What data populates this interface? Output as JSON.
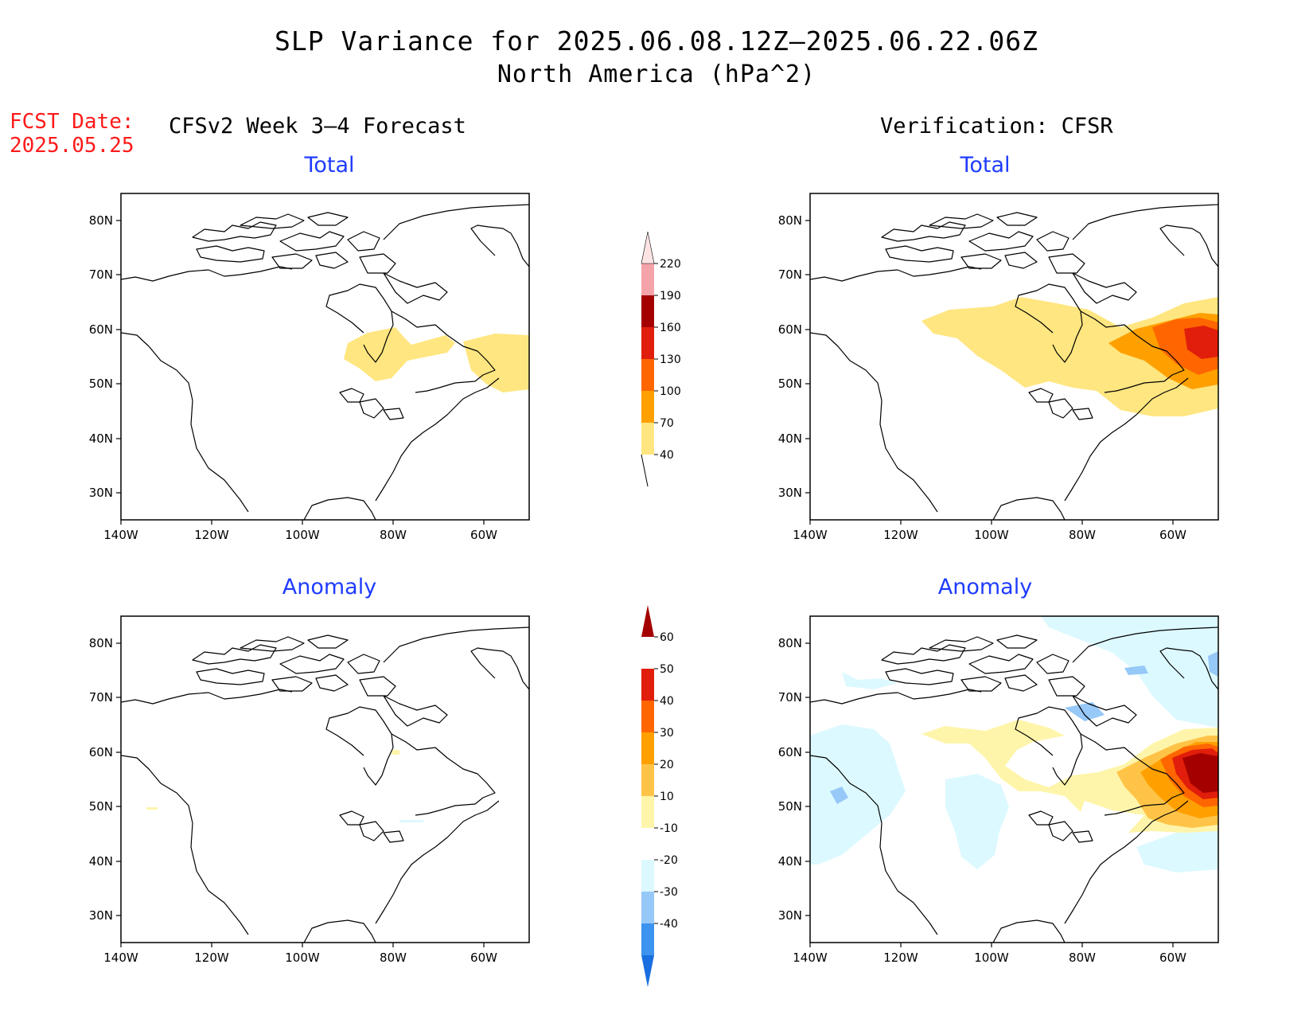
{
  "title": {
    "line1": "SLP Variance for 2025.06.08.12Z–2025.06.22.06Z",
    "line2": "North America (hPa^2)"
  },
  "fcst_date": {
    "label": "FCST Date:",
    "value": "2025.05.25"
  },
  "columns": {
    "left": "CFSv2 Week 3–4 Forecast",
    "right": "Verification: CFSR"
  },
  "panels": {
    "forecast_total": {
      "title": "Total"
    },
    "verification_total": {
      "title": "Total"
    },
    "forecast_anomaly": {
      "title": "Anomaly"
    },
    "verification_anomaly": {
      "title": "Anomaly"
    }
  },
  "axes": {
    "lat_labels": [
      "80N",
      "70N",
      "60N",
      "50N",
      "40N",
      "30N"
    ],
    "lon_labels": [
      "140W",
      "120W",
      "100W",
      "80W",
      "60W"
    ]
  },
  "colorbars": {
    "total": {
      "labels": [
        "40",
        "70",
        "100",
        "130",
        "160",
        "190",
        "220"
      ],
      "colors": [
        "#ffe680",
        "#ffa000",
        "#ff6600",
        "#e11e0b",
        "#a50000",
        "#f4a3a8",
        "#fde4e4"
      ]
    },
    "anomaly": {
      "labels": [
        "60",
        "50",
        "40",
        "30",
        "20",
        "10",
        "-10",
        "-20",
        "-30",
        "-40"
      ],
      "colors": [
        "#1a6fe0",
        "#3c93f0",
        "#96c8f8",
        "#dcf9ff",
        "#ffffff",
        "#fff5aa",
        "#ffc447",
        "#ffa000",
        "#ff6600",
        "#e11e0b",
        "#a50000"
      ]
    }
  }
}
